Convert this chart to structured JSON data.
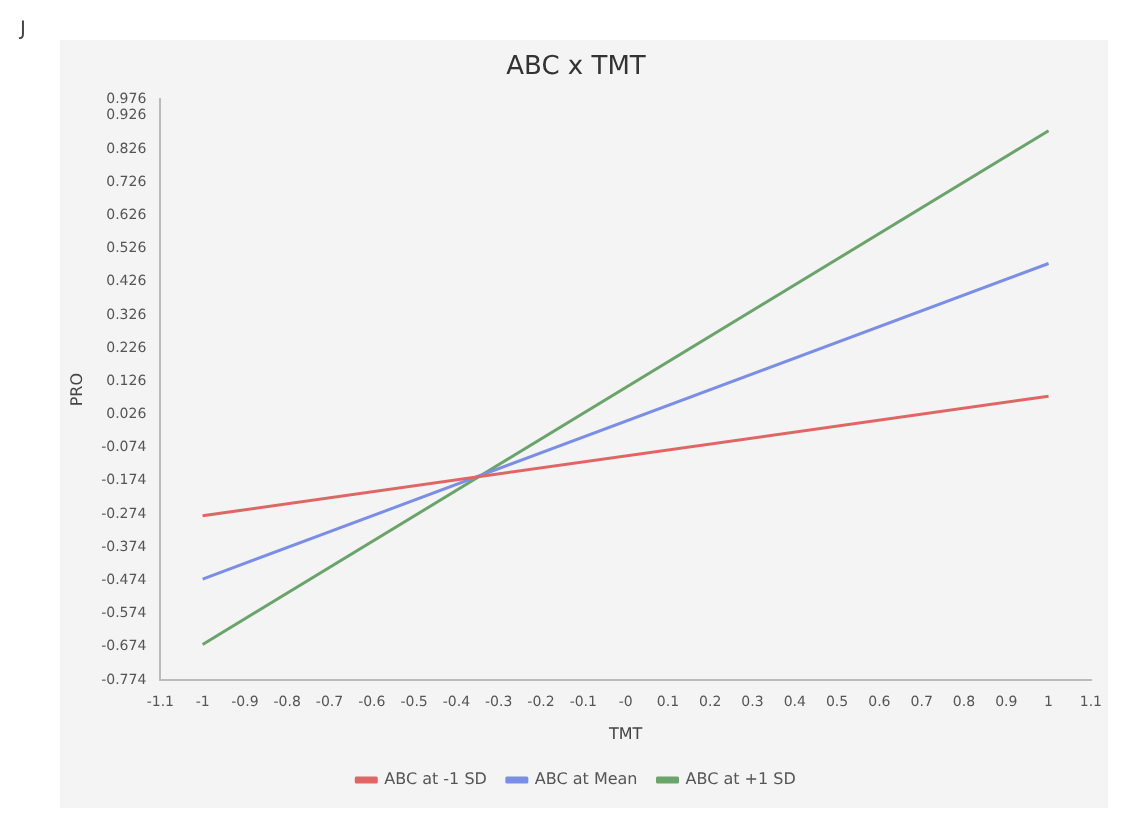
{
  "chart_data": {
    "type": "line",
    "title": "ABC x TMT",
    "xlabel": "TMT",
    "ylabel": "PRO",
    "annotations": [
      "J"
    ],
    "x": [
      -1,
      1
    ],
    "series": [
      {
        "name": "ABC at -1 SD",
        "color": "#e06565",
        "values": [
          -0.279,
          0.081
        ]
      },
      {
        "name": "ABC at Mean",
        "color": "#7a8ee6",
        "values": [
          -0.47,
          0.481
        ]
      },
      {
        "name": "ABC at +1 SD",
        "color": "#6aa46a",
        "values": [
          -0.667,
          0.881
        ]
      }
    ],
    "xlim": [
      -1.1,
      1.1
    ],
    "xticks": [
      -1.1,
      -1,
      -0.9,
      -0.8,
      -0.7,
      -0.6,
      -0.5,
      -0.4,
      -0.3,
      -0.2,
      -0.1,
      {
        "value": 0,
        "label": "-0"
      },
      0.1,
      0.2,
      0.3,
      0.4,
      0.5,
      0.6,
      0.7,
      0.8,
      0.9,
      1,
      1.1
    ],
    "ylim": [
      -0.774,
      0.976
    ],
    "yticks": [
      -0.774,
      -0.674,
      -0.574,
      -0.474,
      -0.374,
      -0.274,
      -0.174,
      -0.074,
      0.026,
      0.126,
      0.226,
      0.326,
      0.426,
      0.526,
      0.626,
      0.726,
      0.826,
      0.926,
      0.976
    ],
    "grid": false,
    "legend": "bottom",
    "marker": "none",
    "line_style": "solid"
  }
}
